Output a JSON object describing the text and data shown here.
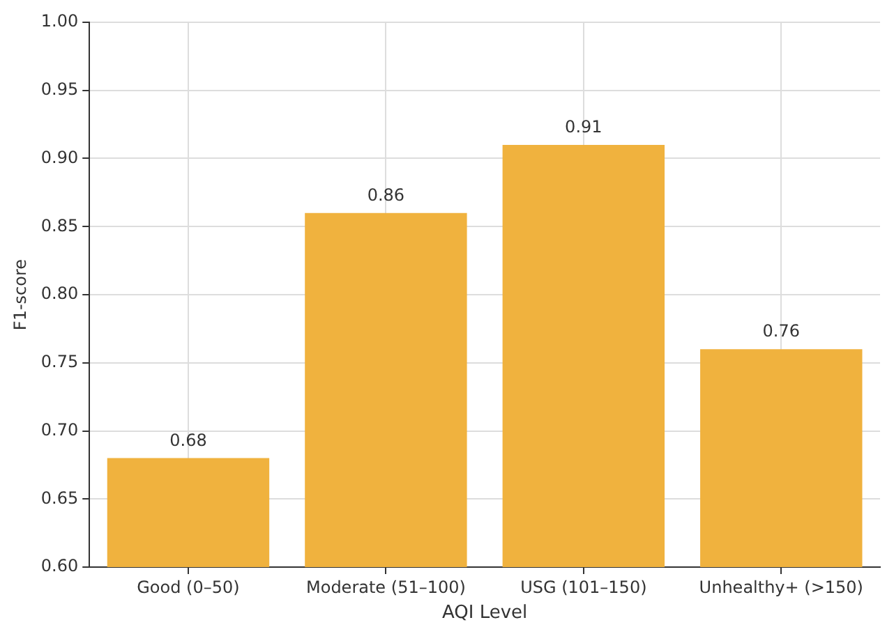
{
  "chart_data": {
    "type": "bar",
    "xlabel": "AQI Level",
    "ylabel": "F1-score",
    "categories": [
      "Good (0–50)",
      "Moderate (51–100)",
      "USG (101–150)",
      "Unhealthy+ (>150)"
    ],
    "values": [
      0.68,
      0.86,
      0.91,
      0.76
    ],
    "color": "#f0b23e",
    "ylim": [
      0.6,
      1.0
    ],
    "yticks": [
      {
        "value": 0.6,
        "label": "0.60"
      },
      {
        "value": 0.65,
        "label": "0.65"
      },
      {
        "value": 0.7,
        "label": "0.70"
      },
      {
        "value": 0.75,
        "label": "0.75"
      },
      {
        "value": 0.8,
        "label": "0.80"
      },
      {
        "value": 0.85,
        "label": "0.85"
      },
      {
        "value": 0.9,
        "label": "0.90"
      },
      {
        "value": 0.95,
        "label": "0.95"
      },
      {
        "value": 1.0,
        "label": "1.00"
      }
    ],
    "grid": true,
    "data_labels": true
  }
}
